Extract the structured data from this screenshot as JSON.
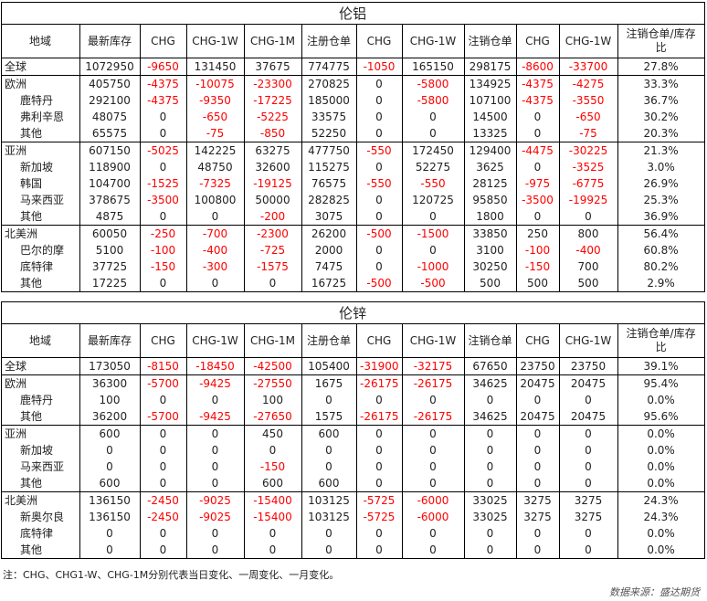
{
  "headers": [
    "地域",
    "最新库存",
    "CHG",
    "CHG-1W",
    "CHG-1M",
    "注册仓单",
    "CHG",
    "CHG-1W",
    "注销仓单",
    "CHG",
    "CHG-1W",
    "注销仓单/库存比"
  ],
  "aluminum": {
    "title": "伦铝",
    "groups": [
      {
        "rows": [
          {
            "sub": false,
            "cells": [
              "全球",
              "1072950",
              "-9650",
              "131450",
              "37675",
              "774775",
              "-1050",
              "165150",
              "298175",
              "-8600",
              "-33700",
              "27.8%"
            ]
          }
        ]
      },
      {
        "rows": [
          {
            "sub": false,
            "cells": [
              "欧洲",
              "405750",
              "-4375",
              "-10075",
              "-23300",
              "270825",
              "0",
              "-5800",
              "134925",
              "-4375",
              "-4275",
              "33.3%"
            ]
          },
          {
            "sub": true,
            "cells": [
              "鹿特丹",
              "292100",
              "-4375",
              "-9350",
              "-17225",
              "185000",
              "0",
              "-5800",
              "107100",
              "-4375",
              "-3550",
              "36.7%"
            ]
          },
          {
            "sub": true,
            "cells": [
              "弗利辛恩",
              "48075",
              "0",
              "-650",
              "-5225",
              "33575",
              "0",
              "0",
              "14500",
              "0",
              "-650",
              "30.2%"
            ]
          },
          {
            "sub": true,
            "cells": [
              "其他",
              "65575",
              "0",
              "-75",
              "-850",
              "52250",
              "0",
              "0",
              "13325",
              "0",
              "-75",
              "20.3%"
            ]
          }
        ]
      },
      {
        "rows": [
          {
            "sub": false,
            "cells": [
              "亚洲",
              "607150",
              "-5025",
              "142225",
              "63275",
              "477750",
              "-550",
              "172450",
              "129400",
              "-4475",
              "-30225",
              "21.3%"
            ]
          },
          {
            "sub": true,
            "cells": [
              "新加坡",
              "118900",
              "0",
              "48750",
              "32600",
              "115275",
              "0",
              "52275",
              "3625",
              "0",
              "-3525",
              "3.0%"
            ]
          },
          {
            "sub": true,
            "cells": [
              "韩国",
              "104700",
              "-1525",
              "-7325",
              "-19125",
              "76575",
              "-550",
              "-550",
              "28125",
              "-975",
              "-6775",
              "26.9%"
            ]
          },
          {
            "sub": true,
            "cells": [
              "马来西亚",
              "378675",
              "-3500",
              "100800",
              "50000",
              "282825",
              "0",
              "120725",
              "95850",
              "-3500",
              "-19925",
              "25.3%"
            ]
          },
          {
            "sub": true,
            "cells": [
              "其他",
              "4875",
              "0",
              "0",
              "-200",
              "3075",
              "0",
              "0",
              "1800",
              "0",
              "0",
              "36.9%"
            ]
          }
        ]
      },
      {
        "rows": [
          {
            "sub": false,
            "cells": [
              "北美洲",
              "60050",
              "-250",
              "-700",
              "-2300",
              "26200",
              "-500",
              "-1500",
              "33850",
              "250",
              "800",
              "56.4%"
            ]
          },
          {
            "sub": true,
            "cells": [
              "巴尔的摩",
              "5100",
              "-100",
              "-400",
              "-725",
              "2000",
              "0",
              "0",
              "3100",
              "-100",
              "-400",
              "60.8%"
            ]
          },
          {
            "sub": true,
            "cells": [
              "底特律",
              "37725",
              "-150",
              "-300",
              "-1575",
              "7475",
              "0",
              "-1000",
              "30250",
              "-150",
              "700",
              "80.2%"
            ]
          },
          {
            "sub": true,
            "cells": [
              "其他",
              "17225",
              "0",
              "0",
              "0",
              "16725",
              "-500",
              "-500",
              "500",
              "500",
              "500",
              "2.9%"
            ]
          }
        ]
      }
    ]
  },
  "zinc": {
    "title": "伦锌",
    "groups": [
      {
        "rows": [
          {
            "sub": false,
            "cells": [
              "全球",
              "173050",
              "-8150",
              "-18450",
              "-42500",
              "105400",
              "-31900",
              "-32175",
              "67650",
              "23750",
              "23750",
              "39.1%"
            ]
          }
        ]
      },
      {
        "rows": [
          {
            "sub": false,
            "cells": [
              "欧洲",
              "36300",
              "-5700",
              "-9425",
              "-27550",
              "1675",
              "-26175",
              "-26175",
              "34625",
              "20475",
              "20475",
              "95.4%"
            ]
          },
          {
            "sub": true,
            "cells": [
              "鹿特丹",
              "100",
              "0",
              "0",
              "100",
              "0",
              "0",
              "0",
              "0",
              "0",
              "0",
              "0.0%"
            ]
          },
          {
            "sub": true,
            "cells": [
              "其他",
              "36200",
              "-5700",
              "-9425",
              "-27650",
              "1575",
              "-26175",
              "-26175",
              "34625",
              "20475",
              "20475",
              "95.6%"
            ]
          }
        ]
      },
      {
        "rows": [
          {
            "sub": false,
            "cells": [
              "亚洲",
              "600",
              "0",
              "0",
              "450",
              "600",
              "0",
              "0",
              "0",
              "0",
              "0",
              "0.0%"
            ]
          },
          {
            "sub": true,
            "cells": [
              "新加坡",
              "0",
              "0",
              "0",
              "0",
              "0",
              "0",
              "0",
              "0",
              "0",
              "0",
              "0.0%"
            ]
          },
          {
            "sub": true,
            "cells": [
              "马来西亚",
              "0",
              "0",
              "0",
              "-150",
              "0",
              "0",
              "0",
              "0",
              "0",
              "0",
              "0.0%"
            ]
          },
          {
            "sub": true,
            "cells": [
              "其他",
              "600",
              "0",
              "0",
              "600",
              "600",
              "0",
              "0",
              "0",
              "0",
              "0",
              "0.0%"
            ]
          }
        ]
      },
      {
        "rows": [
          {
            "sub": false,
            "cells": [
              "北美洲",
              "136150",
              "-2450",
              "-9025",
              "-15400",
              "103125",
              "-5725",
              "-6000",
              "33025",
              "3275",
              "3275",
              "24.3%"
            ]
          },
          {
            "sub": true,
            "cells": [
              "新奥尔良",
              "136150",
              "-2450",
              "-9025",
              "-15400",
              "103125",
              "-5725",
              "-6000",
              "33025",
              "3275",
              "3275",
              "24.3%"
            ]
          },
          {
            "sub": true,
            "cells": [
              "底特律",
              "0",
              "0",
              "0",
              "0",
              "0",
              "0",
              "0",
              "0",
              "0",
              "0",
              "0.0%"
            ]
          },
          {
            "sub": true,
            "cells": [
              "其他",
              "0",
              "0",
              "0",
              "0",
              "0",
              "0",
              "0",
              "0",
              "0",
              "0",
              "0.0%"
            ]
          }
        ]
      }
    ]
  },
  "note": "注：CHG、CHG1-W、CHG-1M分别代表当日变化、一周变化、一月变化。",
  "source": "数据来源：盛达期货",
  "colors": {
    "negative": "#ff0000",
    "text": "#222222",
    "border": "#000000"
  }
}
